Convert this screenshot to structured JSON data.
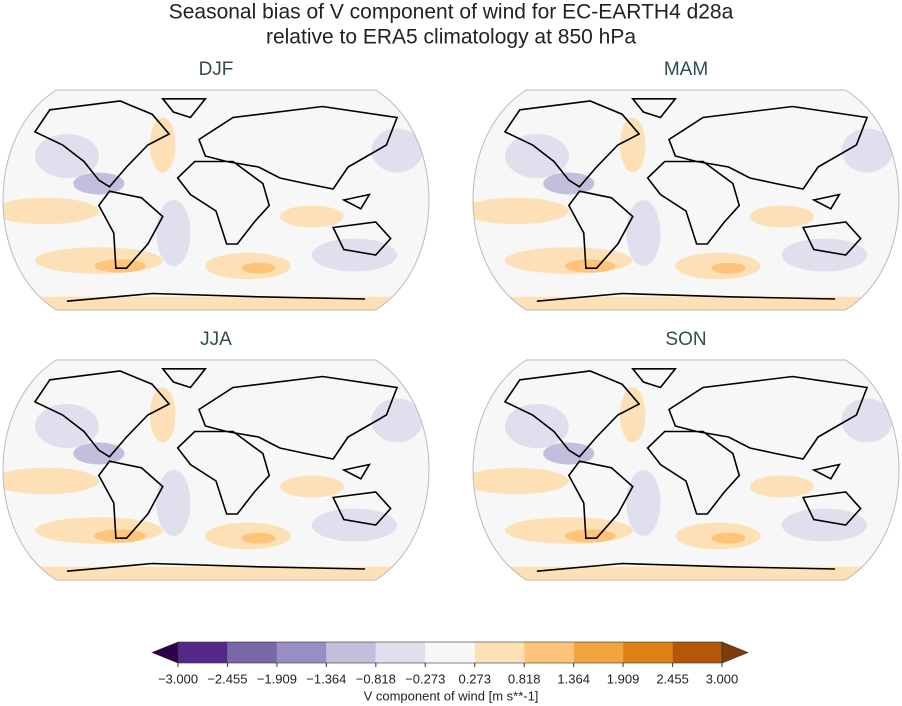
{
  "title": [
    "Seasonal bias of V component of wind for EC-EARTH4 d28a",
    "relative to ERA5 climatology at 850 hPa"
  ],
  "panels": [
    {
      "title": "DJF"
    },
    {
      "title": "MAM"
    },
    {
      "title": "JJA"
    },
    {
      "title": "SON"
    }
  ],
  "colorbar": {
    "ticks": [
      {
        "value": -3,
        "label": "−3.000"
      },
      {
        "value": -2.455,
        "label": "−2.455"
      },
      {
        "value": -1.909,
        "label": "−1.909"
      },
      {
        "value": -1.364,
        "label": "−1.364"
      },
      {
        "value": -0.818,
        "label": "−0.818"
      },
      {
        "value": -0.273,
        "label": "−0.273"
      },
      {
        "value": 0.273,
        "label": "0.273"
      },
      {
        "value": 0.818,
        "label": "0.818"
      },
      {
        "value": 1.364,
        "label": "1.364"
      },
      {
        "value": 1.909,
        "label": "1.909"
      },
      {
        "value": 2.455,
        "label": "2.455"
      },
      {
        "value": 3,
        "label": "3.000"
      }
    ],
    "colors": [
      "#542788",
      "#7a67a9",
      "#998ec3",
      "#c2bfdd",
      "#dfdfee",
      "#f7f7f7",
      "#fde0b6",
      "#fdc47a",
      "#f1a340",
      "#dd8016",
      "#b35806"
    ],
    "extend_colors": [
      "#2d004b",
      "#7f3b08"
    ],
    "label": "V component of wind [m s**-1]"
  }
}
